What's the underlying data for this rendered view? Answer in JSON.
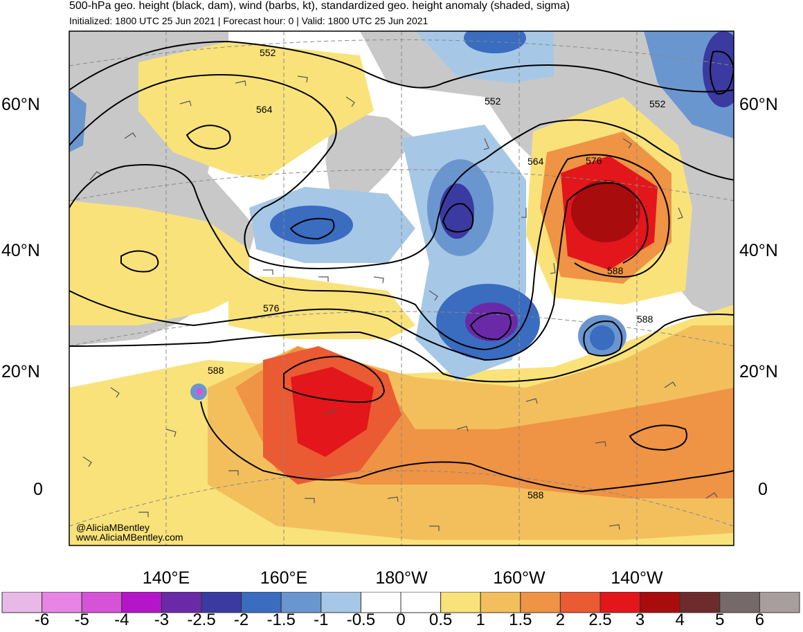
{
  "header": {
    "title": "500-hPa geo. height (black, dam), wind (barbs, kt), standardized geo. height anomaly (shaded, sigma)",
    "subtitle": "Initialized: 1800 UTC 25 Jun 2021 | Forecast hour: 0 | Valid: 1800 UTC 25 Jun 2021"
  },
  "map": {
    "lat_labels": [
      "60°N",
      "40°N",
      "20°N",
      "0"
    ],
    "lon_labels": [
      "140°E",
      "160°E",
      "180°W",
      "160°W",
      "140°W"
    ],
    "contour_labels": [
      "552",
      "564",
      "552",
      "552",
      "564",
      "576",
      "588",
      "576",
      "588",
      "588",
      "588"
    ],
    "credit": [
      "@AliciaMBentley",
      "www.AliciaMBentley.com"
    ]
  },
  "colorbar": {
    "labels": [
      "-6",
      "-5",
      "-4",
      "-3",
      "-2.5",
      "-2",
      "-1.5",
      "-1",
      "-0.5",
      "0",
      "0.5",
      "1",
      "1.5",
      "2",
      "2.5",
      "3",
      "4",
      "5",
      "6"
    ],
    "colors": [
      "#e8b8e6",
      "#e784e4",
      "#d653d8",
      "#b515c8",
      "#6a2aa8",
      "#3b3aa0",
      "#3a6cc0",
      "#6a96d0",
      "#a6c8e6",
      "#ffffff",
      "#ffffff",
      "#f9e27a",
      "#f3bf5c",
      "#ef9344",
      "#ea5a33",
      "#e2161b",
      "#a80c0c",
      "#6e2b2b",
      "#756a69",
      "#a89e9e"
    ]
  }
}
